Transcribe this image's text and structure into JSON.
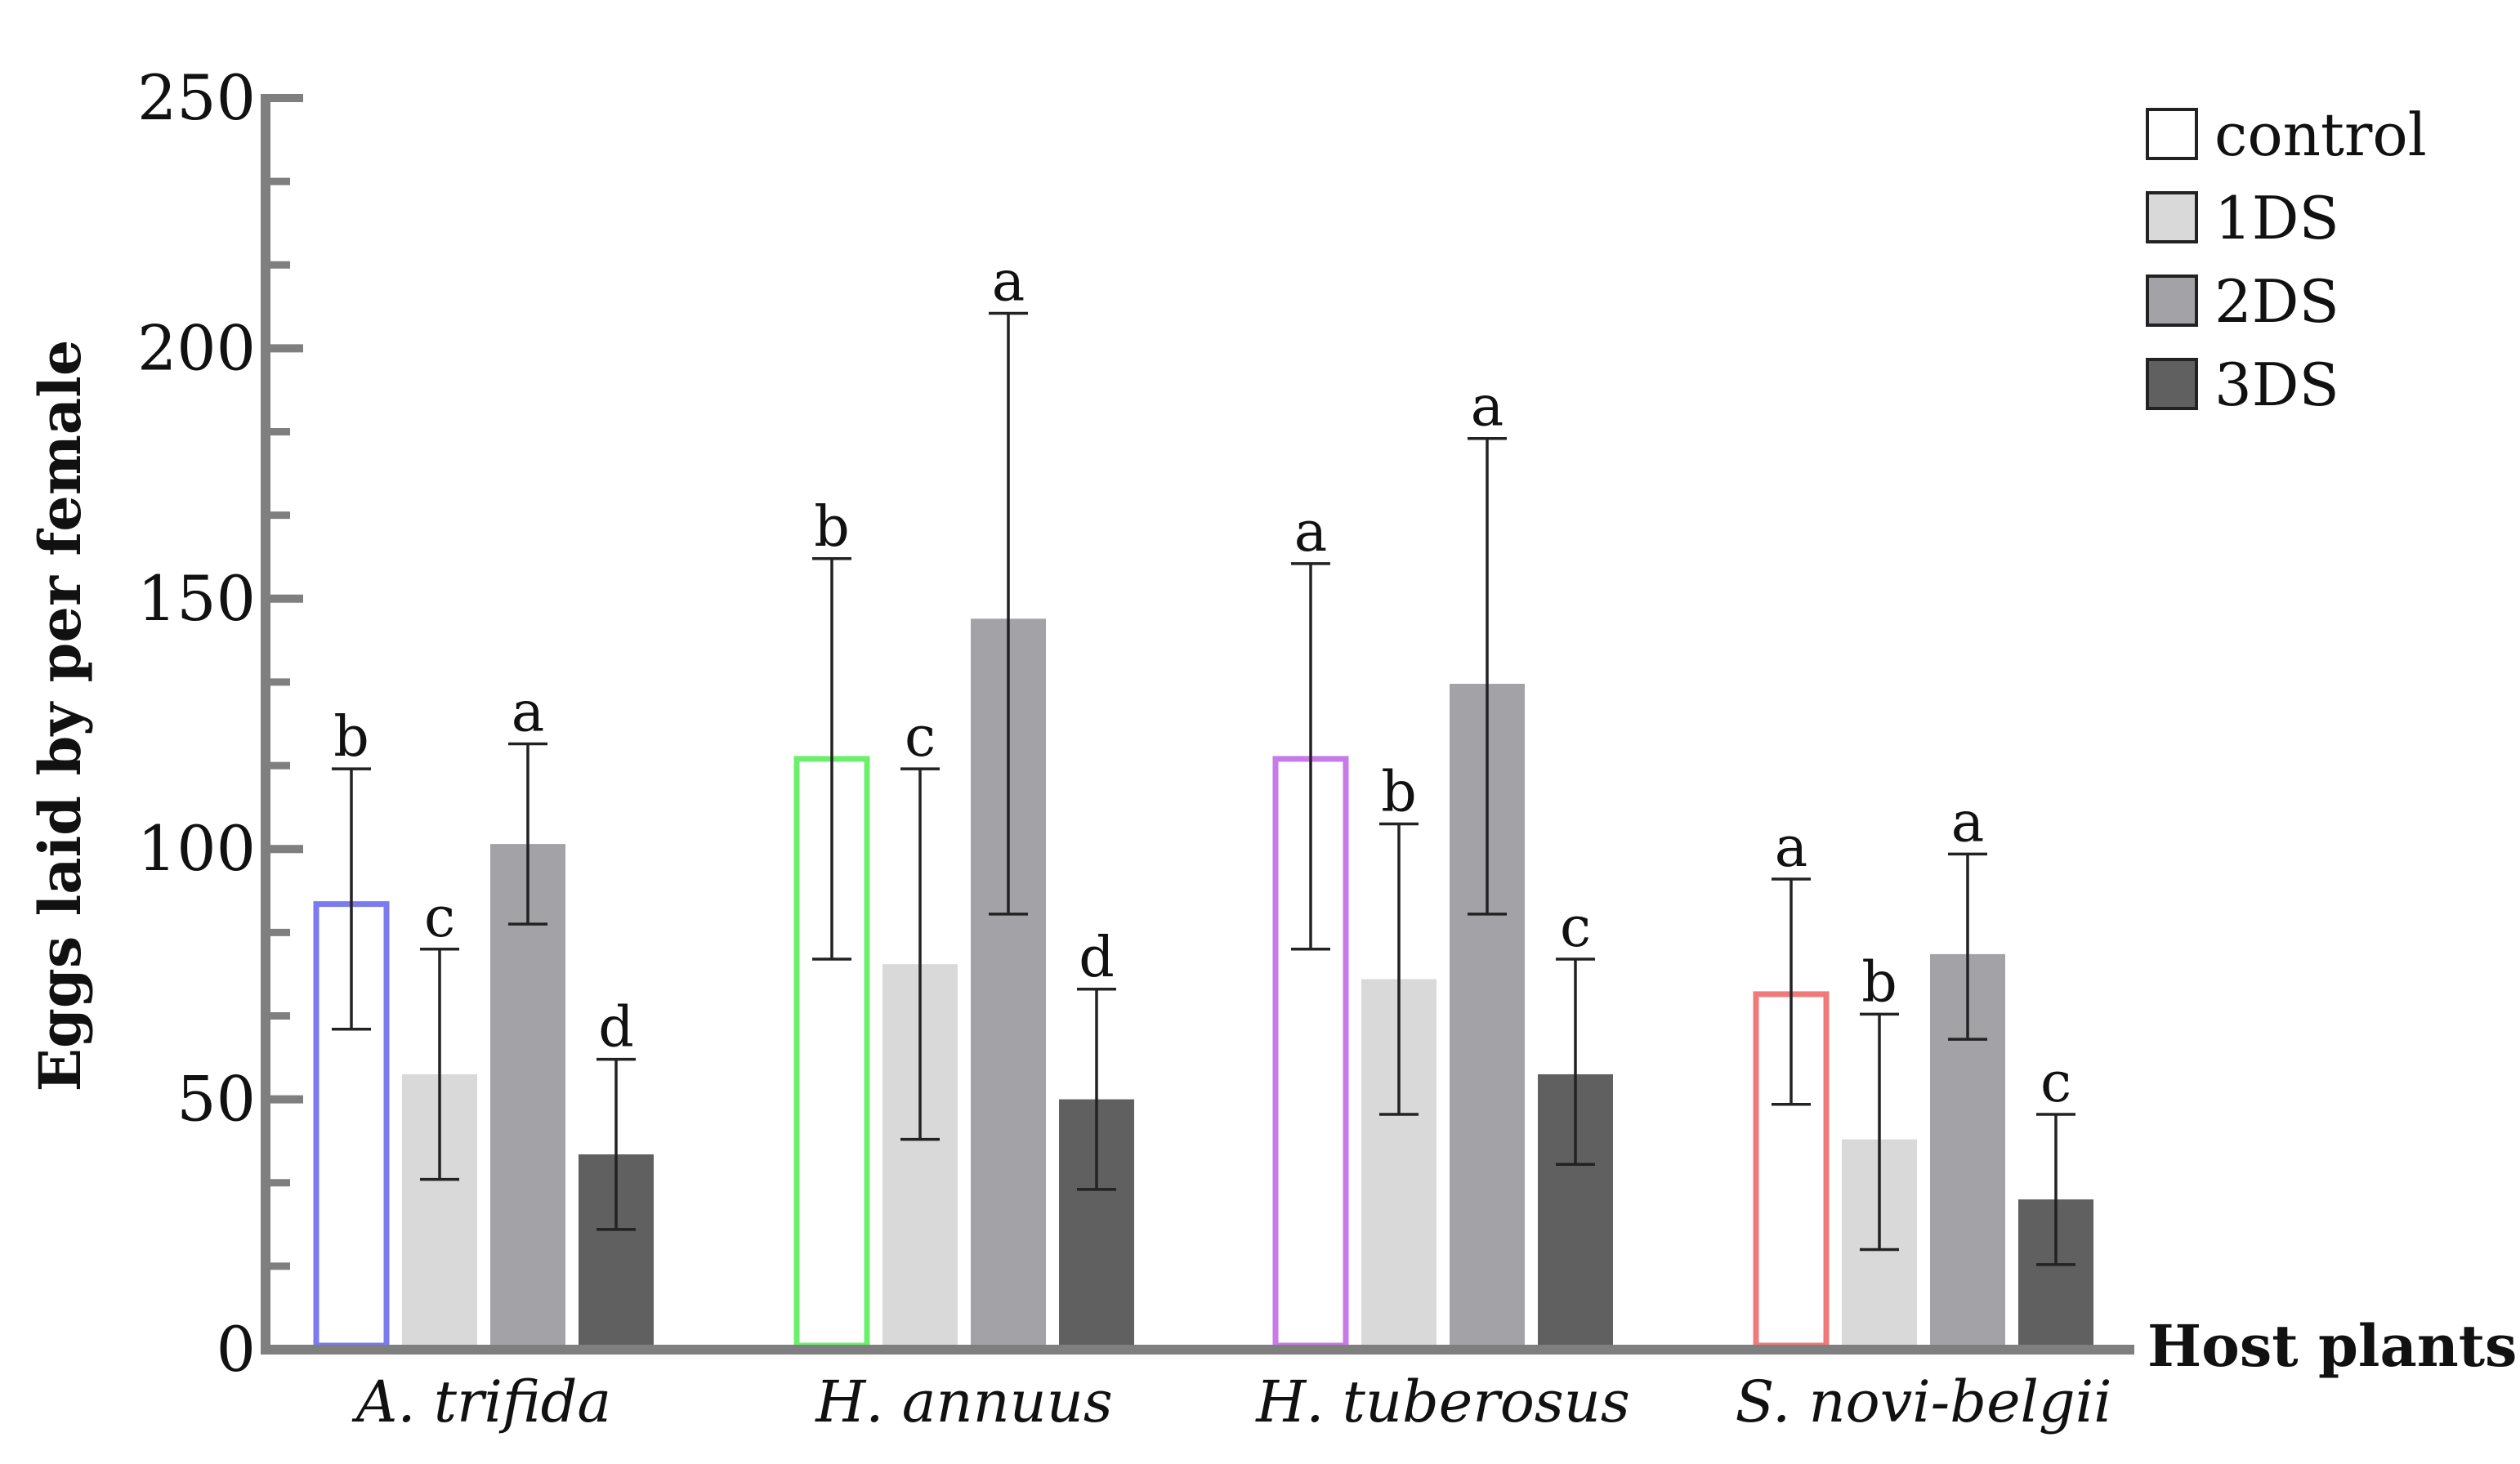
{
  "chart_data": {
    "type": "bar",
    "title": "",
    "ylabel": "Eggs laid by per female",
    "xlabel": "Host plants",
    "ylim": [
      0,
      250
    ],
    "yticks": [
      0,
      50,
      100,
      150,
      200,
      250
    ],
    "ytick_labels": [
      "0",
      "50",
      "100",
      "150",
      "200",
      "250"
    ],
    "categories": [
      "A. trifida",
      "H. annuus",
      "H. tuberosus",
      "S. novi-belgii"
    ],
    "control_colors": [
      "#7b7bf0",
      "#6cf06c",
      "#c77ae8",
      "#f07a7a"
    ],
    "series": [
      {
        "name": "control",
        "fill": "#ffffff",
        "values": [
          89,
          118,
          118,
          71
        ],
        "error_low": [
          64,
          78,
          80,
          49
        ],
        "error_high": [
          116,
          158,
          157,
          94
        ],
        "labels": [
          "b",
          "b",
          "a",
          "a"
        ]
      },
      {
        "name": "1DS",
        "fill": "#d9d9d9",
        "values": [
          55,
          77,
          74,
          42
        ],
        "error_low": [
          34,
          42,
          47,
          20
        ],
        "error_high": [
          80,
          116,
          105,
          67
        ],
        "labels": [
          "c",
          "c",
          "b",
          "b"
        ]
      },
      {
        "name": "2DS",
        "fill": "#a3a3a7",
        "values": [
          101,
          146,
          133,
          79
        ],
        "error_low": [
          85,
          87,
          87,
          62
        ],
        "error_high": [
          121,
          207,
          182,
          99
        ],
        "labels": [
          "a",
          "a",
          "a",
          "a"
        ]
      },
      {
        "name": "3DS",
        "fill": "#606060",
        "values": [
          39,
          50,
          55,
          30
        ],
        "error_low": [
          24,
          32,
          37,
          17
        ],
        "error_high": [
          58,
          72,
          78,
          47
        ],
        "labels": [
          "d",
          "d",
          "c",
          "c"
        ]
      }
    ],
    "legend": {
      "placement": "top-right",
      "entries": [
        "control",
        "1DS",
        "2DS",
        "3DS"
      ]
    },
    "colors": {
      "axis": "#7f7f7f",
      "error_bar": "#222222",
      "legend_border": "#222222"
    }
  }
}
